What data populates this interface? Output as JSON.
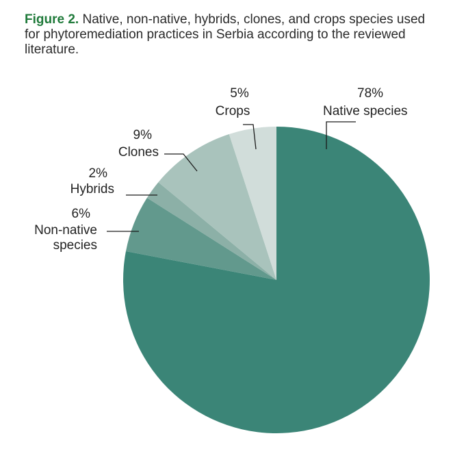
{
  "caption": {
    "figure_label": "Figure 2.",
    "text": "Native, non-native, hybrids, clones, and crops species used for phytoremediation practices in Serbia according to the reviewed literature."
  },
  "chart_data": {
    "type": "pie",
    "title": "",
    "slices": [
      {
        "label_lines": [
          "Native species"
        ],
        "value": 78,
        "pct_label": "78%",
        "color": "#3b8577"
      },
      {
        "label_lines": [
          "Non-native",
          "species"
        ],
        "value": 6,
        "pct_label": "6%",
        "color": "#62998d"
      },
      {
        "label_lines": [
          "Hybrids"
        ],
        "value": 2,
        "pct_label": "2%",
        "color": "#8cb0a7"
      },
      {
        "label_lines": [
          "Clones"
        ],
        "value": 9,
        "pct_label": "9%",
        "color": "#a9c3bc"
      },
      {
        "label_lines": [
          "Crops"
        ],
        "value": 5,
        "pct_label": "5%",
        "color": "#d1ddda"
      }
    ]
  }
}
